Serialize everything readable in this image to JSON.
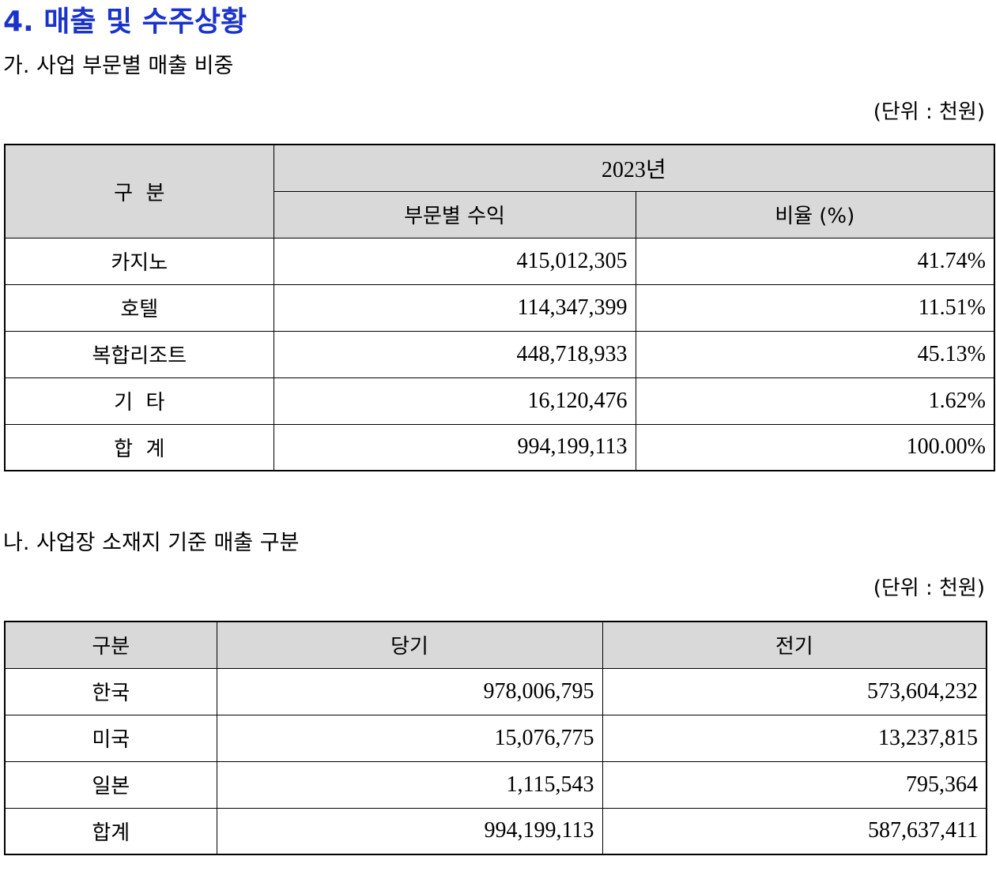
{
  "section_title": "4. 매출 및 수주상황",
  "part_a": {
    "title": "가. 사업 부문별 매출 비중",
    "unit": "(단위 : 천원)",
    "header_category": "구  분",
    "header_year": "2023년",
    "header_revenue": "부문별 수익",
    "header_ratio": "비율 (%)",
    "rows": [
      {
        "label": "카지노",
        "revenue": "415,012,305",
        "ratio": "41.74%"
      },
      {
        "label": "호텔",
        "revenue": "114,347,399",
        "ratio": "11.51%"
      },
      {
        "label": "복합리조트",
        "revenue": "448,718,933",
        "ratio": "45.13%"
      },
      {
        "label": "기  타",
        "revenue": "16,120,476",
        "ratio": "1.62%"
      },
      {
        "label": "합  계",
        "revenue": "994,199,113",
        "ratio": "100.00%"
      }
    ]
  },
  "part_b": {
    "title": "나. 사업장 소재지 기준 매출 구분",
    "unit": "(단위 : 천원)",
    "header_category": "구분",
    "header_current": "당기",
    "header_prior": "전기",
    "rows": [
      {
        "label": "한국",
        "current": "978,006,795",
        "prior": "573,604,232"
      },
      {
        "label": "미국",
        "current": "15,076,775",
        "prior": "13,237,815"
      },
      {
        "label": "일본",
        "current": "1,115,543",
        "prior": "795,364"
      },
      {
        "label": "합계",
        "current": "994,199,113",
        "prior": "587,637,411"
      }
    ]
  },
  "colors": {
    "heading": "#1a33cc",
    "header_bg": "#d9d9d9"
  }
}
